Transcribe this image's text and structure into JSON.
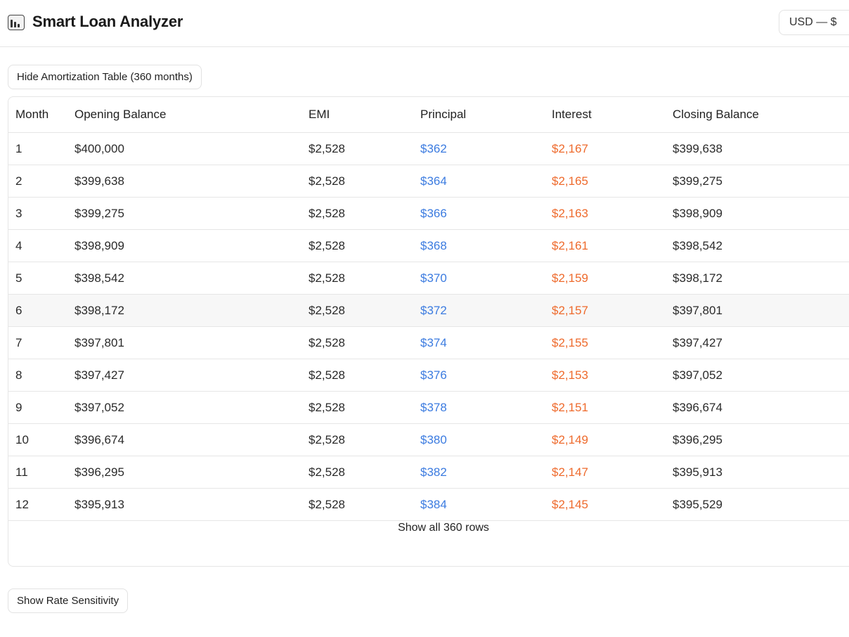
{
  "header": {
    "title": "Smart Loan Analyzer",
    "currency": "USD — $",
    "logo_icon": "bar-chart-icon"
  },
  "buttons": {
    "hide_table": "Hide Amortization Table (360 months)",
    "show_rate": "Show Rate Sensitivity",
    "show_all": "Show all 360 rows"
  },
  "colors": {
    "principal": "#3b7be0",
    "interest": "#ee6a2c"
  },
  "table": {
    "columns": [
      "Month",
      "Opening Balance",
      "EMI",
      "Principal",
      "Interest",
      "Closing Balance"
    ],
    "rows": [
      {
        "month": "1",
        "opening": "$400,000",
        "emi": "$2,528",
        "principal": "$362",
        "interest": "$2,167",
        "closing": "$399,638"
      },
      {
        "month": "2",
        "opening": "$399,638",
        "emi": "$2,528",
        "principal": "$364",
        "interest": "$2,165",
        "closing": "$399,275"
      },
      {
        "month": "3",
        "opening": "$399,275",
        "emi": "$2,528",
        "principal": "$366",
        "interest": "$2,163",
        "closing": "$398,909"
      },
      {
        "month": "4",
        "opening": "$398,909",
        "emi": "$2,528",
        "principal": "$368",
        "interest": "$2,161",
        "closing": "$398,542"
      },
      {
        "month": "5",
        "opening": "$398,542",
        "emi": "$2,528",
        "principal": "$370",
        "interest": "$2,159",
        "closing": "$398,172"
      },
      {
        "month": "6",
        "opening": "$398,172",
        "emi": "$2,528",
        "principal": "$372",
        "interest": "$2,157",
        "closing": "$397,801"
      },
      {
        "month": "7",
        "opening": "$397,801",
        "emi": "$2,528",
        "principal": "$374",
        "interest": "$2,155",
        "closing": "$397,427"
      },
      {
        "month": "8",
        "opening": "$397,427",
        "emi": "$2,528",
        "principal": "$376",
        "interest": "$2,153",
        "closing": "$397,052"
      },
      {
        "month": "9",
        "opening": "$397,052",
        "emi": "$2,528",
        "principal": "$378",
        "interest": "$2,151",
        "closing": "$396,674"
      },
      {
        "month": "10",
        "opening": "$396,674",
        "emi": "$2,528",
        "principal": "$380",
        "interest": "$2,149",
        "closing": "$396,295"
      },
      {
        "month": "11",
        "opening": "$396,295",
        "emi": "$2,528",
        "principal": "$382",
        "interest": "$2,147",
        "closing": "$395,913"
      },
      {
        "month": "12",
        "opening": "$395,913",
        "emi": "$2,528",
        "principal": "$384",
        "interest": "$2,145",
        "closing": "$395,529"
      }
    ]
  }
}
